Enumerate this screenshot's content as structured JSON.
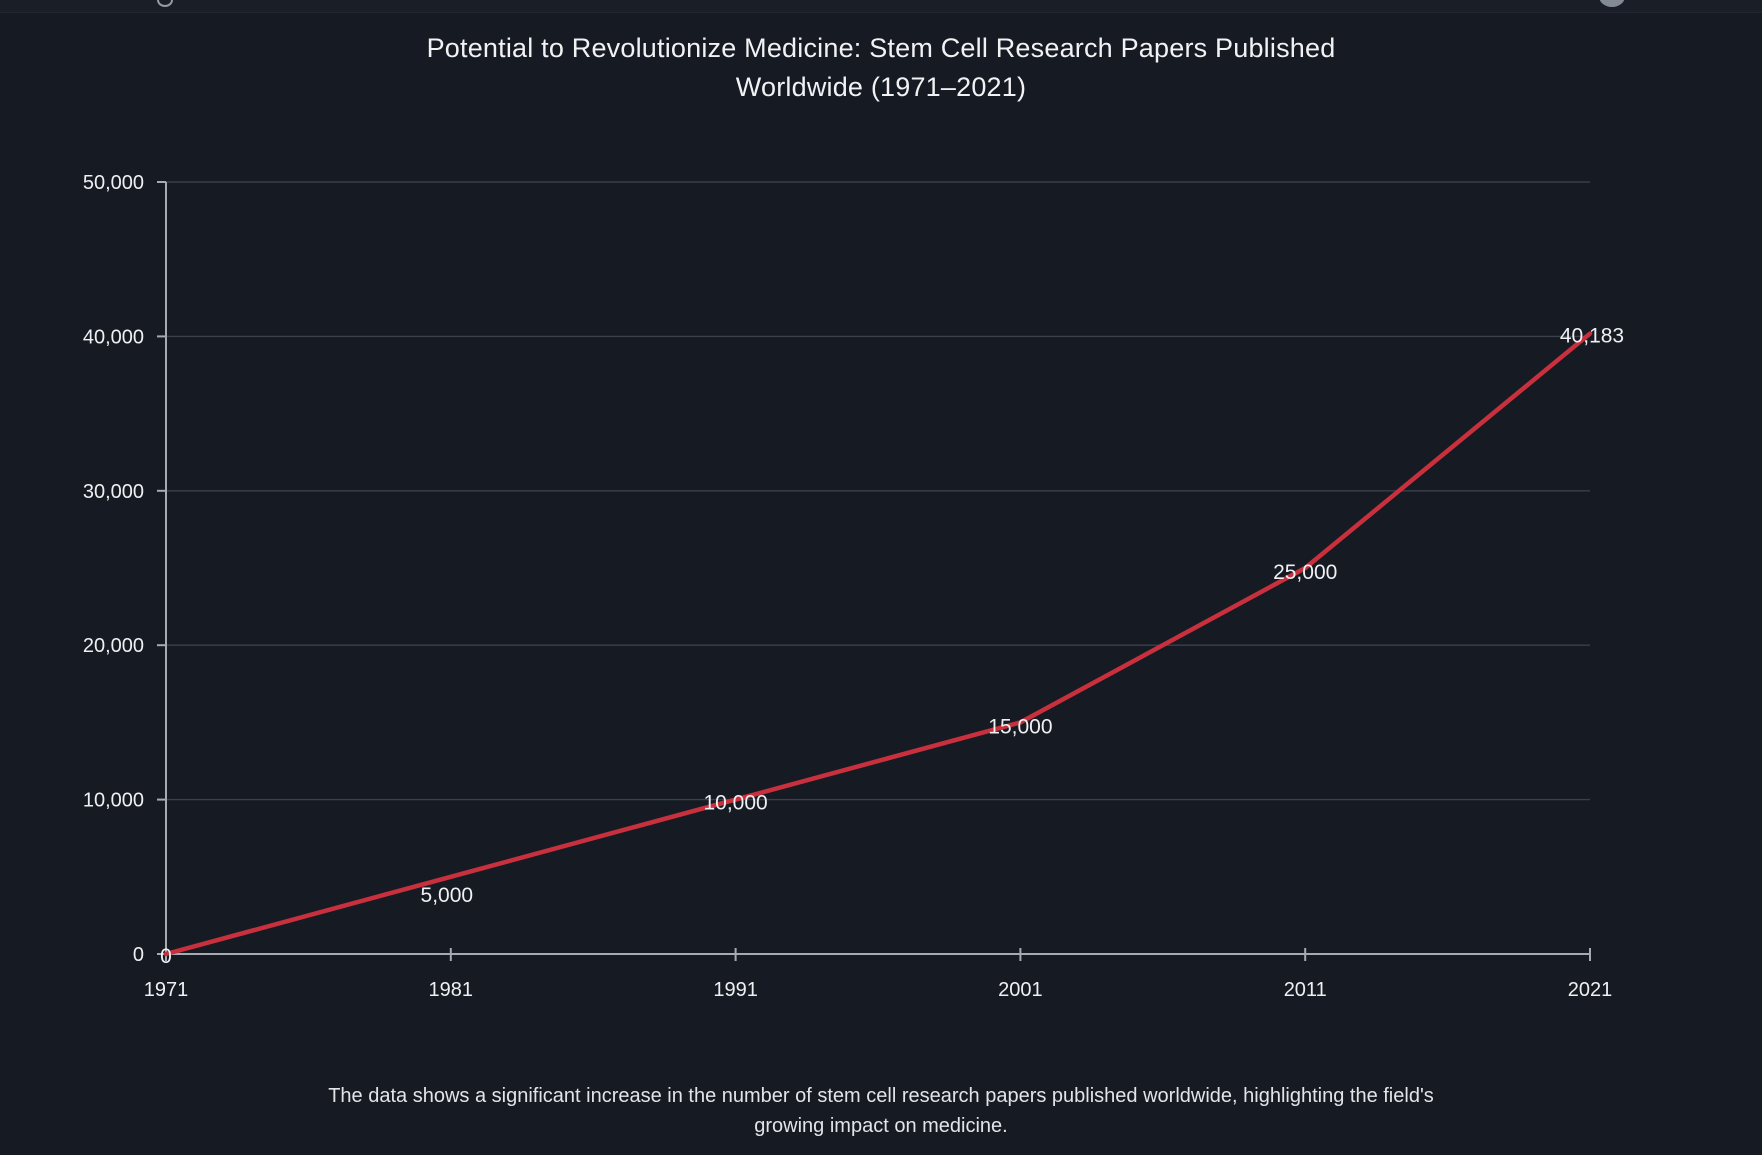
{
  "page": {
    "title_lines": [
      "Potential to Revolutionize Medicine: Stem Cell Research Papers Published",
      "Worldwide (1971–2021)"
    ],
    "footer_lines": [
      "The data shows a significant increase in the number of stem cell research papers published worldwide, highlighting the field's",
      "growing impact on medicine."
    ]
  },
  "colors": {
    "background": "#161a23",
    "line": "#c9303d",
    "axis": "#a6abb3",
    "grid": "#394049",
    "label_text": "#eef0f2"
  },
  "chart_data": {
    "type": "line",
    "title": "Potential to Revolutionize Medicine: Stem Cell Research Papers Published Worldwide (1971–2021)",
    "caption": "The data shows a significant increase in the number of stem cell research papers published worldwide, highlighting the field's growing impact on medicine.",
    "x": [
      1971,
      1981,
      1991,
      2001,
      2011,
      2021
    ],
    "x_tick_labels": [
      "1971",
      "1981",
      "1991",
      "2001",
      "2011",
      "2021"
    ],
    "series": [
      {
        "name": "Stem cell research papers published worldwide",
        "values": [
          0,
          5000,
          10000,
          15000,
          25000,
          40183
        ]
      }
    ],
    "point_labels": [
      "0",
      "5,000",
      "10,000",
      "15,000",
      "25,000",
      "40,183"
    ],
    "y_ticks": [
      0,
      10000,
      20000,
      30000,
      40000,
      50000
    ],
    "y_tick_labels": [
      "0",
      "10,000",
      "20,000",
      "30,000",
      "40,000",
      "50,000"
    ],
    "xlim": [
      1971,
      2021
    ],
    "ylim": [
      0,
      50000
    ],
    "xlabel": "",
    "ylabel": "",
    "grid": true,
    "legend": "none",
    "line_color": "#c9303d"
  }
}
